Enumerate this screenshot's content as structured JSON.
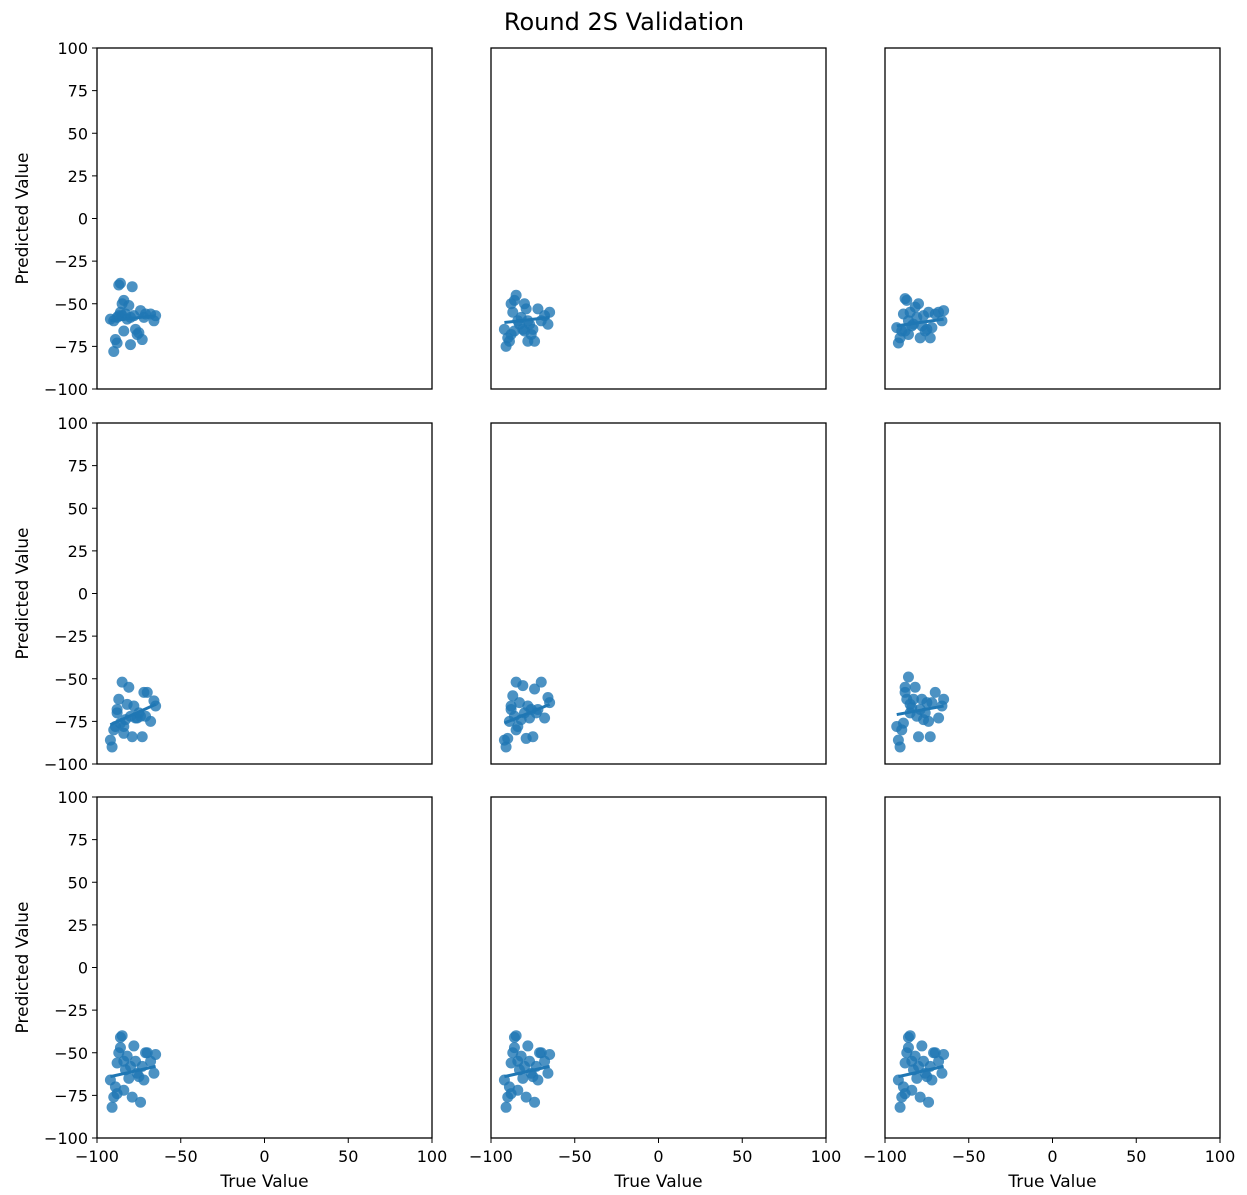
{
  "figure": {
    "title": "Round 2S Validation",
    "accent_color": "#1f77b4"
  },
  "chart_data": [
    {
      "type": "scatter",
      "xlabel": "",
      "ylabel": "Predicted Value",
      "xlim": [
        -100,
        100
      ],
      "ylim": [
        -100,
        100
      ],
      "grid": false,
      "show_xticks": false,
      "show_yticks": true,
      "x": [
        -92,
        -90,
        -88,
        -87,
        -86,
        -85,
        -84,
        -86,
        -87,
        -85,
        -83,
        -82,
        -81,
        -80,
        -79,
        -78,
        -77,
        -76,
        -75,
        -74,
        -73,
        -72,
        -71,
        -68,
        -66,
        -65,
        -90,
        -89,
        -88,
        -84,
        -80
      ],
      "y": [
        -59,
        -60,
        -58,
        -57,
        -55,
        -50,
        -48,
        -38,
        -39,
        -57,
        -56,
        -59,
        -51,
        -58,
        -40,
        -57,
        -65,
        -68,
        -67,
        -54,
        -71,
        -58,
        -56,
        -56,
        -60,
        -57,
        -78,
        -71,
        -73,
        -66,
        -74
      ],
      "fit": {
        "x": [
          -92,
          -65
        ],
        "y": [
          -60,
          -57
        ]
      }
    },
    {
      "type": "scatter",
      "xlabel": "",
      "ylabel": "",
      "xlim": [
        -100,
        100
      ],
      "ylim": [
        -100,
        100
      ],
      "grid": false,
      "show_xticks": false,
      "show_yticks": false,
      "x": [
        -92,
        -91,
        -90,
        -89,
        -88,
        -87,
        -86,
        -85,
        -84,
        -83,
        -82,
        -81,
        -80,
        -79,
        -78,
        -77,
        -76,
        -75,
        -74,
        -72,
        -70,
        -68,
        -66,
        -65,
        -88,
        -86,
        -80,
        -78
      ],
      "y": [
        -65,
        -75,
        -70,
        -72,
        -68,
        -55,
        -48,
        -45,
        -60,
        -62,
        -58,
        -65,
        -50,
        -53,
        -72,
        -62,
        -68,
        -65,
        -72,
        -53,
        -60,
        -57,
        -62,
        -55,
        -50,
        -66,
        -66,
        -60
      ],
      "fit": {
        "x": [
          -92,
          -65
        ],
        "y": [
          -61,
          -58
        ]
      }
    },
    {
      "type": "scatter",
      "xlabel": "",
      "ylabel": "",
      "xlim": [
        -100,
        100
      ],
      "ylim": [
        -100,
        100
      ],
      "grid": false,
      "show_xticks": false,
      "show_yticks": false,
      "x": [
        -93,
        -92,
        -91,
        -90,
        -89,
        -88,
        -87,
        -86,
        -85,
        -84,
        -83,
        -82,
        -81,
        -80,
        -79,
        -78,
        -77,
        -76,
        -75,
        -74,
        -73,
        -72,
        -70,
        -68,
        -66,
        -65,
        -88,
        -86
      ],
      "y": [
        -64,
        -73,
        -70,
        -66,
        -56,
        -47,
        -48,
        -60,
        -55,
        -63,
        -62,
        -52,
        -58,
        -50,
        -70,
        -63,
        -57,
        -66,
        -65,
        -55,
        -70,
        -64,
        -56,
        -55,
        -60,
        -54,
        -66,
        -68
      ],
      "fit": {
        "x": [
          -93,
          -65
        ],
        "y": [
          -63,
          -59
        ]
      }
    },
    {
      "type": "scatter",
      "xlabel": "",
      "ylabel": "Predicted Value",
      "xlim": [
        -100,
        100
      ],
      "ylim": [
        -100,
        100
      ],
      "grid": false,
      "show_xticks": false,
      "show_yticks": true,
      "x": [
        -92,
        -91,
        -90,
        -89,
        -88,
        -87,
        -86,
        -85,
        -84,
        -83,
        -82,
        -81,
        -80,
        -79,
        -78,
        -77,
        -76,
        -75,
        -74,
        -73,
        -72,
        -71,
        -70,
        -68,
        -66,
        -65,
        -88,
        -84
      ],
      "y": [
        -86,
        -90,
        -80,
        -78,
        -70,
        -62,
        -76,
        -52,
        -82,
        -74,
        -65,
        -55,
        -72,
        -84,
        -66,
        -73,
        -73,
        -70,
        -72,
        -84,
        -58,
        -72,
        -58,
        -75,
        -63,
        -66,
        -68,
        -78
      ],
      "fit": {
        "x": [
          -92,
          -65
        ],
        "y": [
          -77,
          -65
        ]
      }
    },
    {
      "type": "scatter",
      "xlabel": "",
      "ylabel": "",
      "xlim": [
        -100,
        100
      ],
      "ylim": [
        -100,
        100
      ],
      "grid": false,
      "show_xticks": false,
      "show_yticks": false,
      "x": [
        -92,
        -91,
        -90,
        -89,
        -88,
        -87,
        -86,
        -85,
        -84,
        -83,
        -82,
        -81,
        -80,
        -79,
        -78,
        -77,
        -76,
        -75,
        -74,
        -73,
        -72,
        -70,
        -68,
        -66,
        -65,
        -88,
        -85
      ],
      "y": [
        -86,
        -90,
        -85,
        -75,
        -68,
        -60,
        -72,
        -52,
        -78,
        -64,
        -74,
        -54,
        -70,
        -85,
        -66,
        -73,
        -68,
        -84,
        -56,
        -70,
        -68,
        -52,
        -73,
        -61,
        -64,
        -66,
        -80
      ],
      "fit": {
        "x": [
          -92,
          -65
        ],
        "y": [
          -76,
          -65
        ]
      }
    },
    {
      "type": "scatter",
      "xlabel": "",
      "ylabel": "",
      "xlim": [
        -100,
        100
      ],
      "ylim": [
        -100,
        100
      ],
      "grid": false,
      "show_xticks": false,
      "show_yticks": false,
      "x": [
        -93,
        -92,
        -91,
        -90,
        -89,
        -88,
        -87,
        -86,
        -85,
        -84,
        -83,
        -82,
        -81,
        -80,
        -79,
        -78,
        -77,
        -76,
        -75,
        -74,
        -73,
        -72,
        -70,
        -68,
        -66,
        -65,
        -88,
        -85
      ],
      "y": [
        -78,
        -86,
        -90,
        -80,
        -76,
        -58,
        -62,
        -49,
        -70,
        -67,
        -62,
        -55,
        -72,
        -84,
        -68,
        -62,
        -74,
        -70,
        -64,
        -75,
        -84,
        -64,
        -58,
        -73,
        -66,
        -62,
        -55,
        -65
      ],
      "fit": {
        "x": [
          -93,
          -65
        ],
        "y": [
          -71,
          -66
        ]
      }
    },
    {
      "type": "scatter",
      "xlabel": "True Value",
      "ylabel": "Predicted Value",
      "xlim": [
        -100,
        100
      ],
      "ylim": [
        -100,
        100
      ],
      "grid": false,
      "show_xticks": true,
      "show_yticks": true,
      "x": [
        -92,
        -91,
        -90,
        -89,
        -88,
        -87,
        -86,
        -85,
        -84,
        -83,
        -82,
        -81,
        -80,
        -79,
        -78,
        -77,
        -76,
        -75,
        -74,
        -73,
        -72,
        -71,
        -70,
        -68,
        -66,
        -65,
        -88,
        -84,
        -86
      ],
      "y": [
        -66,
        -82,
        -76,
        -70,
        -74,
        -50,
        -41,
        -40,
        -55,
        -60,
        -52,
        -65,
        -58,
        -76,
        -46,
        -55,
        -62,
        -64,
        -79,
        -58,
        -66,
        -50,
        -50,
        -55,
        -62,
        -51,
        -56,
        -72,
        -47
      ],
      "fit": {
        "x": [
          -92,
          -65
        ],
        "y": [
          -64,
          -58
        ]
      }
    },
    {
      "type": "scatter",
      "xlabel": "True Value",
      "ylabel": "",
      "xlim": [
        -100,
        100
      ],
      "ylim": [
        -100,
        100
      ],
      "grid": false,
      "show_xticks": true,
      "show_yticks": false,
      "x": [
        -92,
        -91,
        -90,
        -89,
        -88,
        -87,
        -86,
        -85,
        -84,
        -83,
        -82,
        -81,
        -80,
        -79,
        -78,
        -77,
        -76,
        -75,
        -74,
        -73,
        -72,
        -71,
        -70,
        -68,
        -66,
        -65,
        -88,
        -84,
        -86
      ],
      "y": [
        -66,
        -82,
        -76,
        -70,
        -74,
        -50,
        -41,
        -40,
        -55,
        -60,
        -52,
        -65,
        -58,
        -76,
        -46,
        -55,
        -62,
        -64,
        -79,
        -58,
        -66,
        -50,
        -50,
        -55,
        -62,
        -51,
        -56,
        -72,
        -47
      ],
      "fit": {
        "x": [
          -92,
          -65
        ],
        "y": [
          -64,
          -58
        ]
      }
    },
    {
      "type": "scatter",
      "xlabel": "True Value",
      "ylabel": "",
      "xlim": [
        -100,
        100
      ],
      "ylim": [
        -100,
        100
      ],
      "grid": false,
      "show_xticks": true,
      "show_yticks": false,
      "x": [
        -92,
        -91,
        -90,
        -89,
        -88,
        -87,
        -86,
        -85,
        -84,
        -83,
        -82,
        -81,
        -80,
        -79,
        -78,
        -77,
        -76,
        -75,
        -74,
        -73,
        -72,
        -71,
        -70,
        -68,
        -66,
        -65,
        -88,
        -84,
        -86
      ],
      "y": [
        -66,
        -82,
        -76,
        -70,
        -74,
        -50,
        -41,
        -40,
        -55,
        -60,
        -52,
        -65,
        -58,
        -76,
        -46,
        -55,
        -62,
        -64,
        -79,
        -58,
        -66,
        -50,
        -50,
        -55,
        -62,
        -51,
        -56,
        -72,
        -47
      ],
      "fit": {
        "x": [
          -92,
          -65
        ],
        "y": [
          -64,
          -58
        ]
      }
    }
  ]
}
